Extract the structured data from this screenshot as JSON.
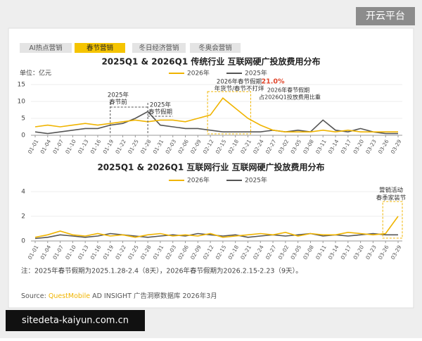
{
  "badge": "开云平台",
  "tabs": [
    {
      "label": "AI热点营销",
      "active": false
    },
    {
      "label": "春节营销",
      "active": true
    },
    {
      "label": "冬日经济营销",
      "active": false
    },
    {
      "label": "冬奥会营销",
      "active": false
    }
  ],
  "chart_data": [
    {
      "type": "line",
      "title": "2025Q1 & 2026Q1 传统行业 互联网硬广投放费用分布",
      "unit": "单位：亿元",
      "categories": [
        "01-01",
        "01-04",
        "01-07",
        "01-10",
        "01-13",
        "01-16",
        "01-19",
        "01-22",
        "01-25",
        "01-28",
        "01-31",
        "02-03",
        "02-06",
        "02-09",
        "02-12",
        "02-15",
        "02-18",
        "02-21",
        "02-24",
        "02-27",
        "03-02",
        "03-05",
        "03-08",
        "03-11",
        "03-14",
        "03-17",
        "03-20",
        "03-23",
        "03-26",
        "03-29"
      ],
      "series": [
        {
          "name": "2026年",
          "color": "#f0b400",
          "values": [
            2.5,
            3,
            2.5,
            3,
            3.5,
            3,
            3.5,
            4,
            4.5,
            4,
            4.5,
            4.5,
            4,
            5,
            6,
            11,
            8,
            5,
            3,
            1.5,
            1,
            1,
            1,
            1.5,
            1,
            1.5,
            1,
            1,
            1,
            1
          ]
        },
        {
          "name": "2025年",
          "color": "#555555",
          "values": [
            1,
            0.5,
            1,
            1.5,
            2,
            2,
            3,
            3.5,
            5,
            7,
            3,
            2.5,
            2,
            2,
            1.5,
            1,
            1,
            1,
            1,
            1.5,
            1,
            1.5,
            1,
            4.5,
            1.5,
            1,
            2,
            1,
            0.5,
            0.5
          ]
        }
      ],
      "ylim": [
        0,
        15
      ],
      "yticks": [
        0,
        5,
        10,
        15
      ],
      "grid": true,
      "annotations": [
        "2025年",
        "春节前",
        "2025年",
        "春节假期",
        "2026年春节假期",
        "年货节/春节不打烊",
        "21.0%",
        "2026年春节假期",
        "占2026Q1投放费用比重"
      ]
    },
    {
      "type": "line",
      "title": "2025Q1 & 2026Q1 互联网行业 互联网硬广投放费用分布",
      "categories": [
        "01-01",
        "01-04",
        "01-07",
        "01-10",
        "01-13",
        "01-16",
        "01-19",
        "01-22",
        "01-25",
        "01-28",
        "01-31",
        "02-03",
        "02-06",
        "02-09",
        "02-12",
        "02-15",
        "02-18",
        "02-21",
        "02-24",
        "02-27",
        "03-02",
        "03-05",
        "03-08",
        "03-11",
        "03-14",
        "03-17",
        "03-20",
        "03-23",
        "03-26",
        "03-29"
      ],
      "series": [
        {
          "name": "2026年",
          "color": "#f0b400",
          "values": [
            0.3,
            0.5,
            0.8,
            0.5,
            0.4,
            0.6,
            0.4,
            0.5,
            0.3,
            0.5,
            0.6,
            0.4,
            0.5,
            0.4,
            0.6,
            0.3,
            0.4,
            0.5,
            0.6,
            0.5,
            0.7,
            0.4,
            0.6,
            0.5,
            0.5,
            0.7,
            0.6,
            0.5,
            0.6,
            2
          ]
        },
        {
          "name": "2025年",
          "color": "#555555",
          "values": [
            0.2,
            0.3,
            0.5,
            0.4,
            0.3,
            0.4,
            0.6,
            0.5,
            0.4,
            0.3,
            0.4,
            0.5,
            0.4,
            0.6,
            0.5,
            0.4,
            0.5,
            0.3,
            0.4,
            0.5,
            0.4,
            0.5,
            0.6,
            0.4,
            0.5,
            0.4,
            0.5,
            0.6,
            0.5,
            0.5
          ]
        }
      ],
      "ylim": [
        0,
        4
      ],
      "yticks": [
        0,
        2,
        4
      ],
      "grid": true,
      "annotations": [
        "营销活动",
        "春季家装节"
      ]
    }
  ],
  "footnote": "注：2025年春节假期为2025.1.28-2.4（8天），2026年春节假期为2026.2.15-2.23（9天）。",
  "source": {
    "prefix": "Source:",
    "brand": "QuestMobile",
    "rest": "AD INSIGHT 广告洞察数据库 2026年3月"
  },
  "watermark": "sitedeta-kaiyun.com.cn"
}
